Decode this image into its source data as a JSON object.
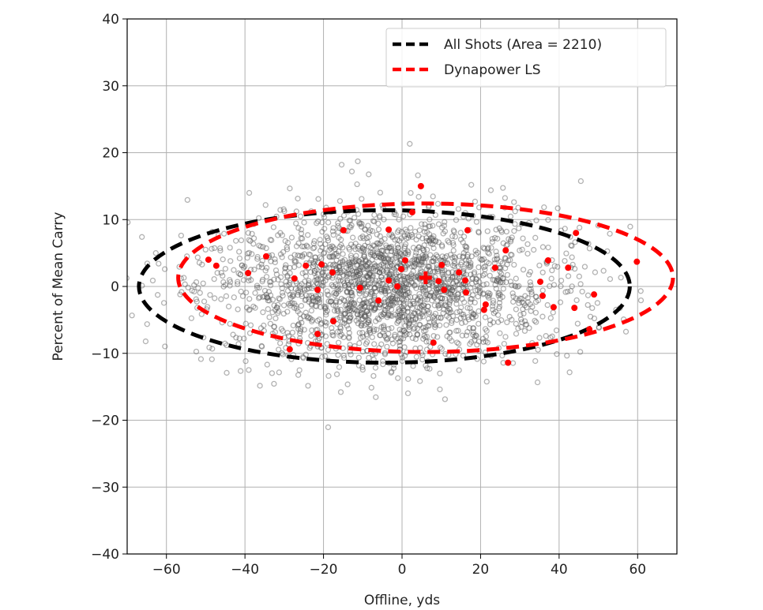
{
  "chart_data": {
    "type": "scatter",
    "title": "",
    "xlabel": "Offline, yds",
    "ylabel": "Percent of Mean Carry",
    "xlim": [
      -70,
      70
    ],
    "ylim": [
      -40,
      40
    ],
    "xticks": [
      -60,
      -40,
      -20,
      0,
      20,
      40,
      60
    ],
    "yticks": [
      -40,
      -30,
      -20,
      -10,
      0,
      10,
      20,
      30,
      40
    ],
    "xtick_labels": [
      "−60",
      "−40",
      "−20",
      "0",
      "20",
      "40",
      "60"
    ],
    "ytick_labels": [
      "−40",
      "−30",
      "−20",
      "−10",
      "0",
      "10",
      "20",
      "30",
      "40"
    ],
    "grid": true,
    "legend": {
      "placement": "top-right",
      "entries": [
        {
          "label": "All Shots (Area = 2210)",
          "color": "#000000",
          "style": "dashed"
        },
        {
          "label": "Dynapower LS",
          "color": "#ff0000",
          "style": "dashed"
        }
      ]
    },
    "series": [
      {
        "name": "All Shots (Area = 2210)",
        "marker": "open-circle",
        "color": "#555555",
        "distribution": {
          "x_mean": -4,
          "x_sd": 22,
          "y_mean": 0,
          "y_sd": 5.6
        },
        "ellipse": {
          "cx": -4.5,
          "cy": 0,
          "rx": 62.5,
          "ry": 11.4,
          "color": "#000000"
        }
      },
      {
        "name": "Dynapower LS",
        "marker": "filled-circle",
        "color": "#ff0000",
        "mean": {
          "x": 6.0,
          "y": 1.3
        },
        "ellipse": {
          "cx": 6,
          "cy": 1.3,
          "rx": 63,
          "ry": 11.1,
          "color": "#ff0000"
        },
        "points": [
          [
            -49.3,
            4.0
          ],
          [
            -47.3,
            3.1
          ],
          [
            -34.6,
            4.5
          ],
          [
            -39.2,
            2.0
          ],
          [
            -24.5,
            3.1
          ],
          [
            -20.5,
            3.3
          ],
          [
            -17.7,
            2.1
          ],
          [
            -27.4,
            1.2
          ],
          [
            -21.5,
            -0.5
          ],
          [
            -14.9,
            8.4
          ],
          [
            -3.4,
            8.5
          ],
          [
            -10.7,
            -0.2
          ],
          [
            -6.0,
            -2.1
          ],
          [
            -3.4,
            0.9
          ],
          [
            -1.2,
            0.0
          ],
          [
            -17.5,
            -5.2
          ],
          [
            -21.5,
            -7.1
          ],
          [
            -28.6,
            -9.4
          ],
          [
            4.8,
            15.0
          ],
          [
            2.6,
            11.1
          ],
          [
            16.7,
            8.4
          ],
          [
            26.4,
            5.4
          ],
          [
            44.3,
            8.0
          ],
          [
            59.8,
            3.7
          ],
          [
            0.8,
            3.9
          ],
          [
            -0.2,
            2.6
          ],
          [
            10.1,
            3.2
          ],
          [
            9.3,
            0.8
          ],
          [
            14.5,
            2.1
          ],
          [
            16.1,
            0.9
          ],
          [
            10.7,
            -0.5
          ],
          [
            16.3,
            -0.9
          ],
          [
            23.7,
            2.8
          ],
          [
            37.2,
            3.9
          ],
          [
            42.3,
            2.8
          ],
          [
            35.2,
            0.7
          ],
          [
            35.8,
            -1.4
          ],
          [
            48.9,
            -1.2
          ],
          [
            38.6,
            -3.1
          ],
          [
            43.9,
            -3.2
          ],
          [
            21.3,
            -2.7
          ],
          [
            20.9,
            -3.5
          ],
          [
            8.0,
            -8.4
          ],
          [
            27.0,
            -11.4
          ],
          [
            47.7,
            -6.4
          ]
        ]
      }
    ]
  }
}
